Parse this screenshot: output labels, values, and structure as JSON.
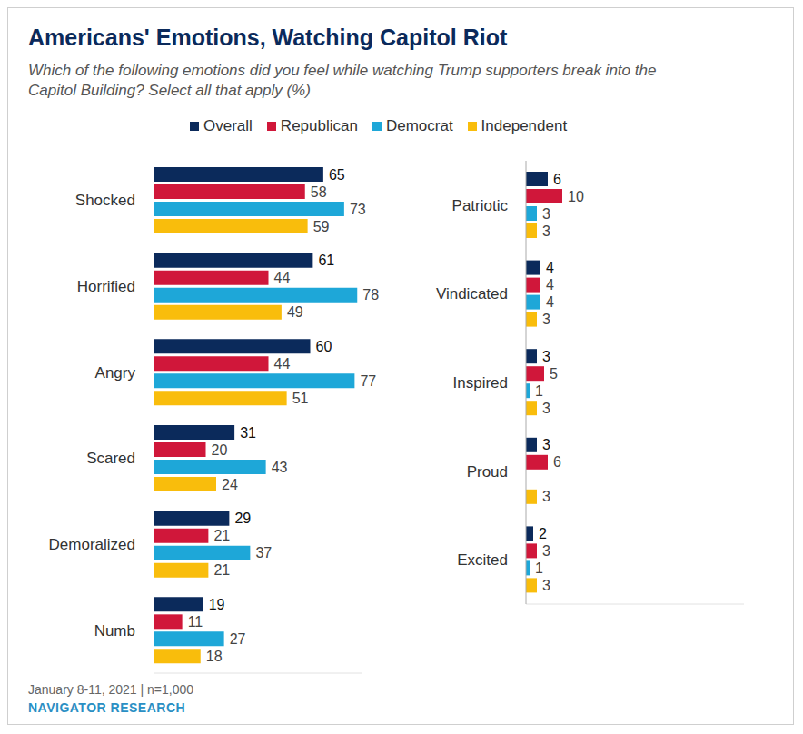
{
  "title": "Americans' Emotions, Watching Capitol Riot",
  "subtitle": "Which of the following emotions did you feel while watching Trump supporters break into the Capitol Building? Select all that apply (%)",
  "source": "January 8-11, 2021 | n=1,000",
  "credit": "NAVIGATOR RESEARCH",
  "chart_data": [
    {
      "type": "bar",
      "orientation": "horizontal",
      "data_labels": true,
      "tick_labels": "y",
      "legend": "top",
      "xlim": [
        0,
        80
      ],
      "categories": [
        "Shocked",
        "Horrified",
        "Angry",
        "Scared",
        "Demoralized",
        "Numb"
      ],
      "series": [
        {
          "name": "Overall",
          "color": "#0b2a5b",
          "values": [
            65,
            61,
            60,
            31,
            29,
            19
          ]
        },
        {
          "name": "Republican",
          "color": "#d0173a",
          "values": [
            58,
            44,
            44,
            20,
            21,
            11
          ]
        },
        {
          "name": "Democrat",
          "color": "#1ea7d8",
          "values": [
            73,
            78,
            77,
            43,
            37,
            27
          ]
        },
        {
          "name": "Independent",
          "color": "#f9bd0c",
          "values": [
            59,
            49,
            51,
            24,
            21,
            18
          ]
        }
      ]
    },
    {
      "type": "bar",
      "orientation": "horizontal",
      "data_labels": true,
      "tick_labels": "y",
      "xlim": [
        0,
        60
      ],
      "categories": [
        "Patriotic",
        "Vindicated",
        "Inspired",
        "Proud",
        "Excited"
      ],
      "series": [
        {
          "name": "Overall",
          "color": "#0b2a5b",
          "values": [
            6,
            4,
            3,
            3,
            2
          ]
        },
        {
          "name": "Republican",
          "color": "#d0173a",
          "values": [
            10,
            4,
            5,
            6,
            3
          ]
        },
        {
          "name": "Democrat",
          "color": "#1ea7d8",
          "values": [
            3,
            4,
            1,
            0,
            1
          ]
        },
        {
          "name": "Independent",
          "color": "#f9bd0c",
          "values": [
            3,
            3,
            3,
            3,
            3
          ]
        }
      ]
    }
  ]
}
